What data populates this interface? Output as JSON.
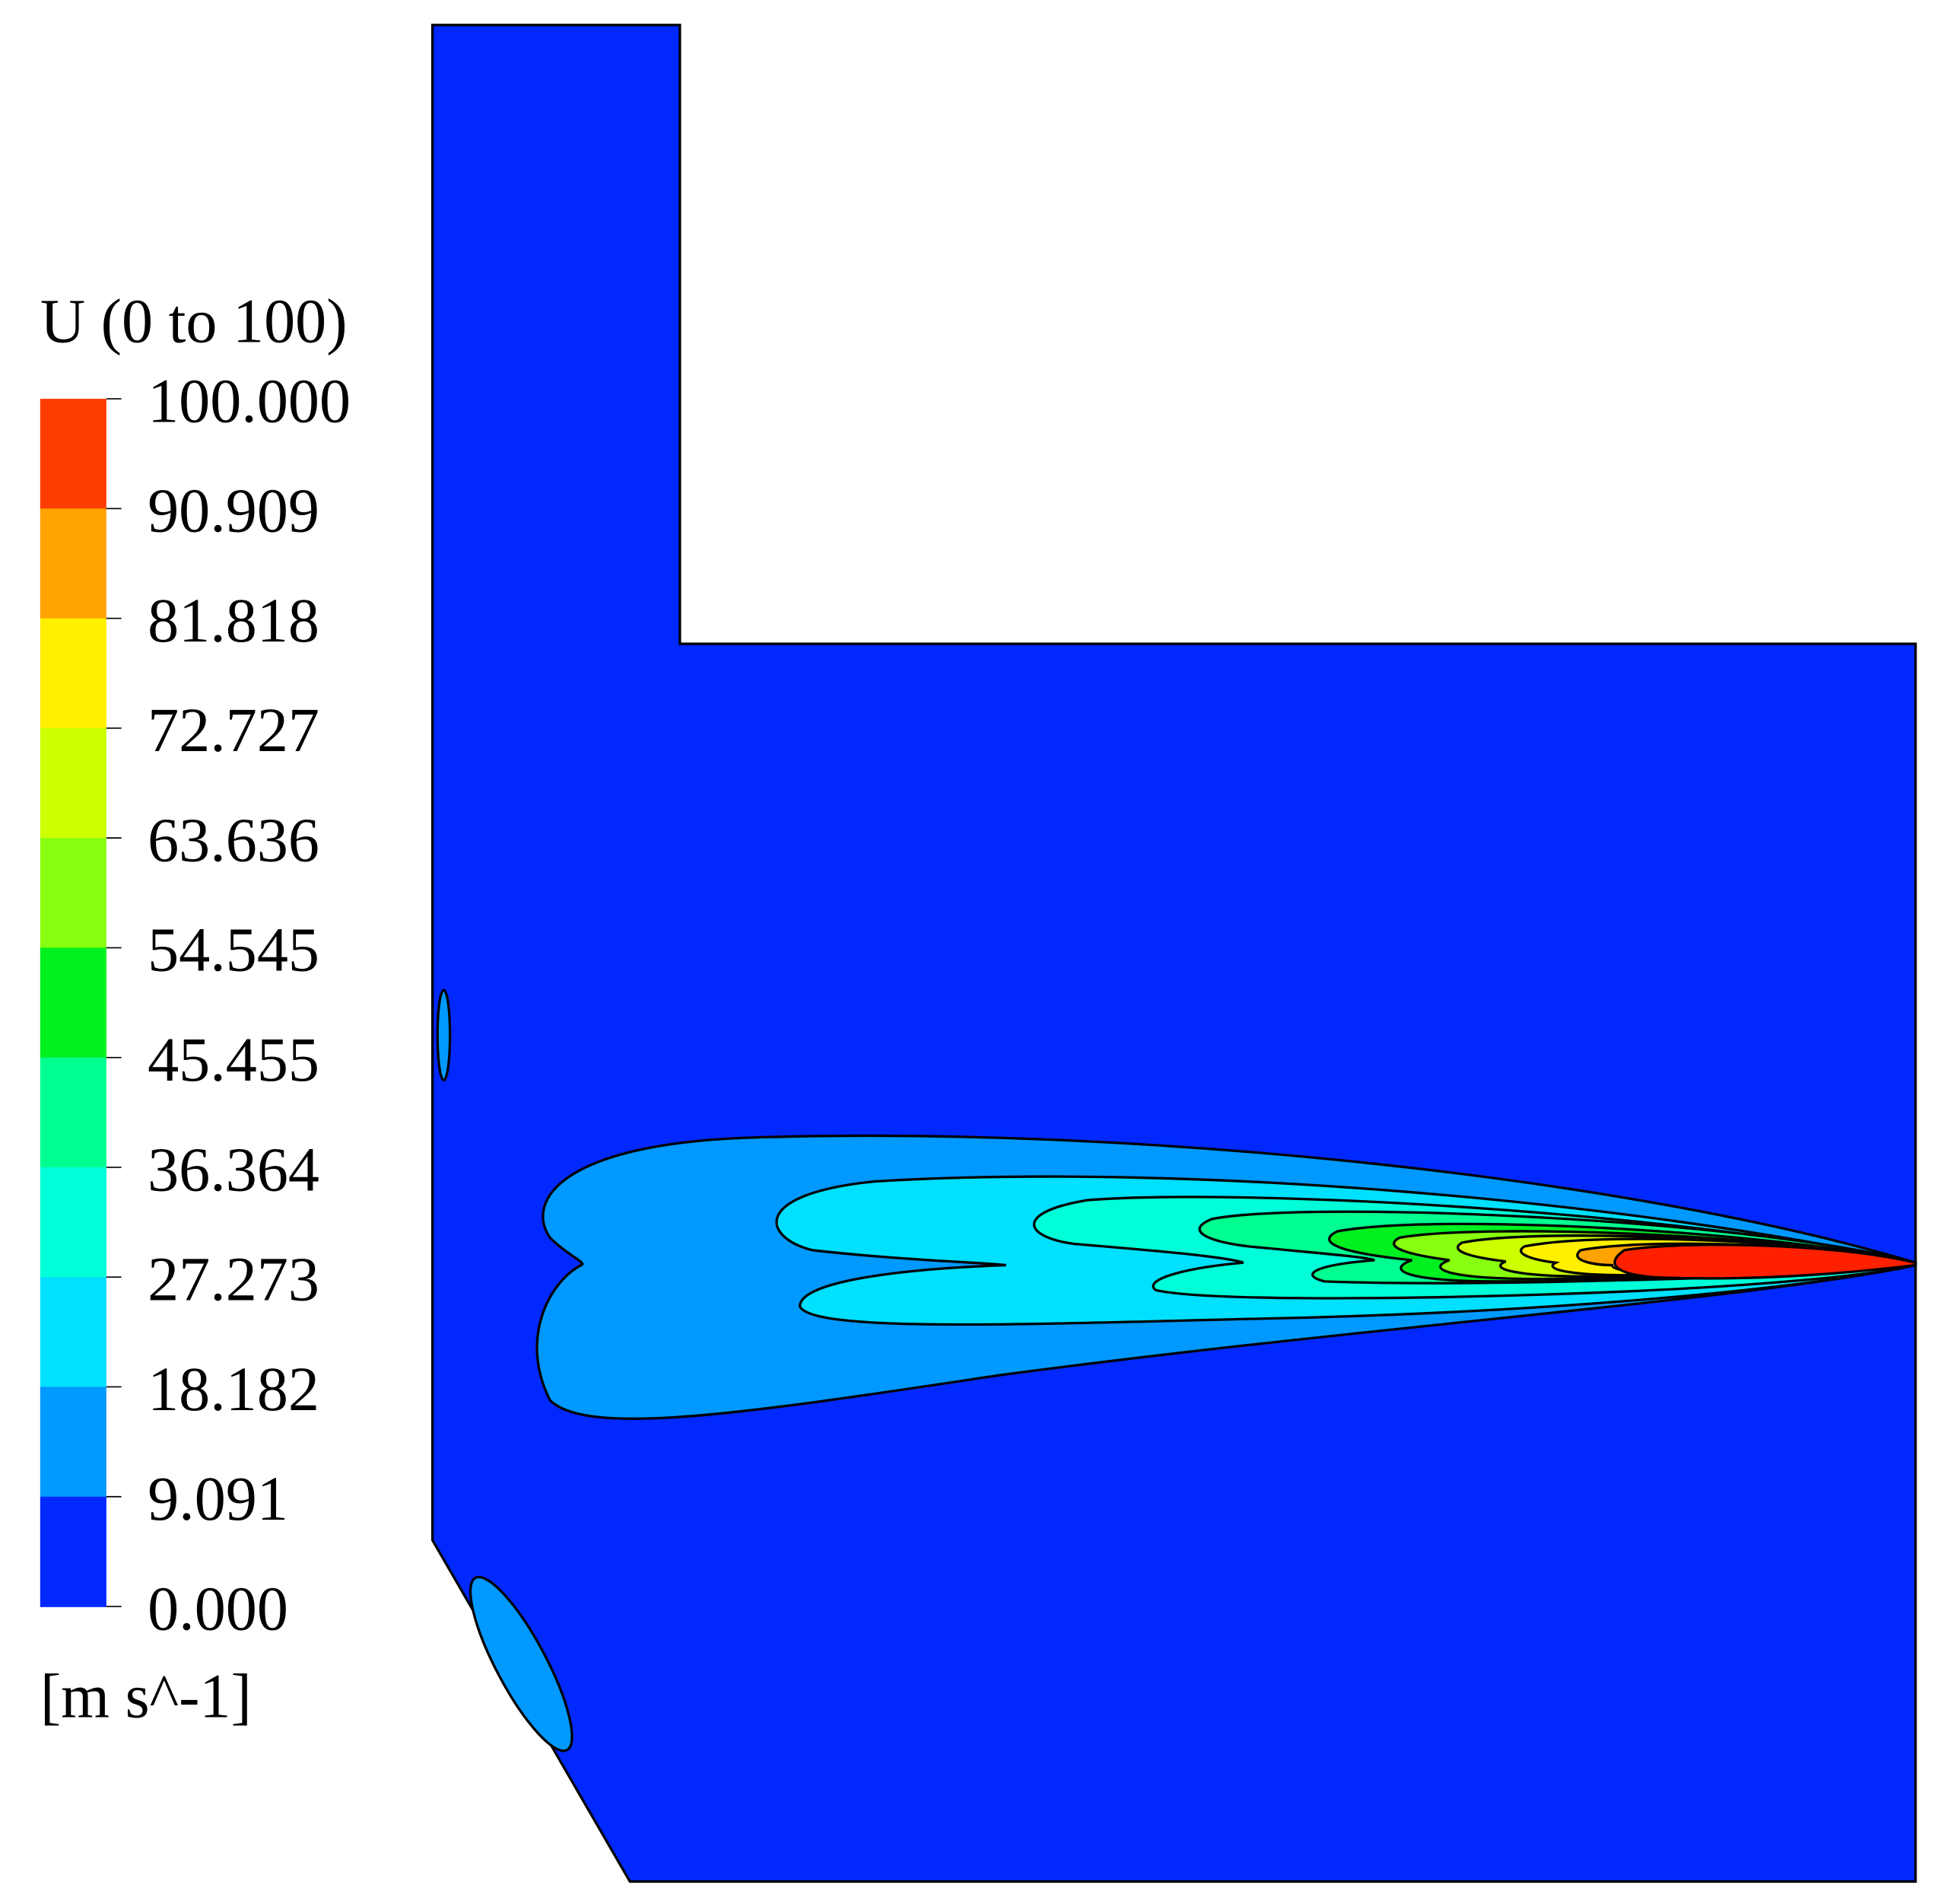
{
  "legend": {
    "title": "U (0 to 100)",
    "ticks": [
      "100.000",
      "90.909",
      "81.818",
      "72.727",
      "63.636",
      "54.545",
      "45.455",
      "36.364",
      "27.273",
      "18.182",
      "9.091",
      "0.000"
    ],
    "colors": [
      "#ff3d00",
      "#ffa300",
      "#fff000",
      "#ccff00",
      "#88ff10",
      "#00f020",
      "#00ff90",
      "#00ffd8",
      "#00e0ff",
      "#0099ff",
      "#0028ff"
    ],
    "unit": "[m s^-1]"
  }
}
